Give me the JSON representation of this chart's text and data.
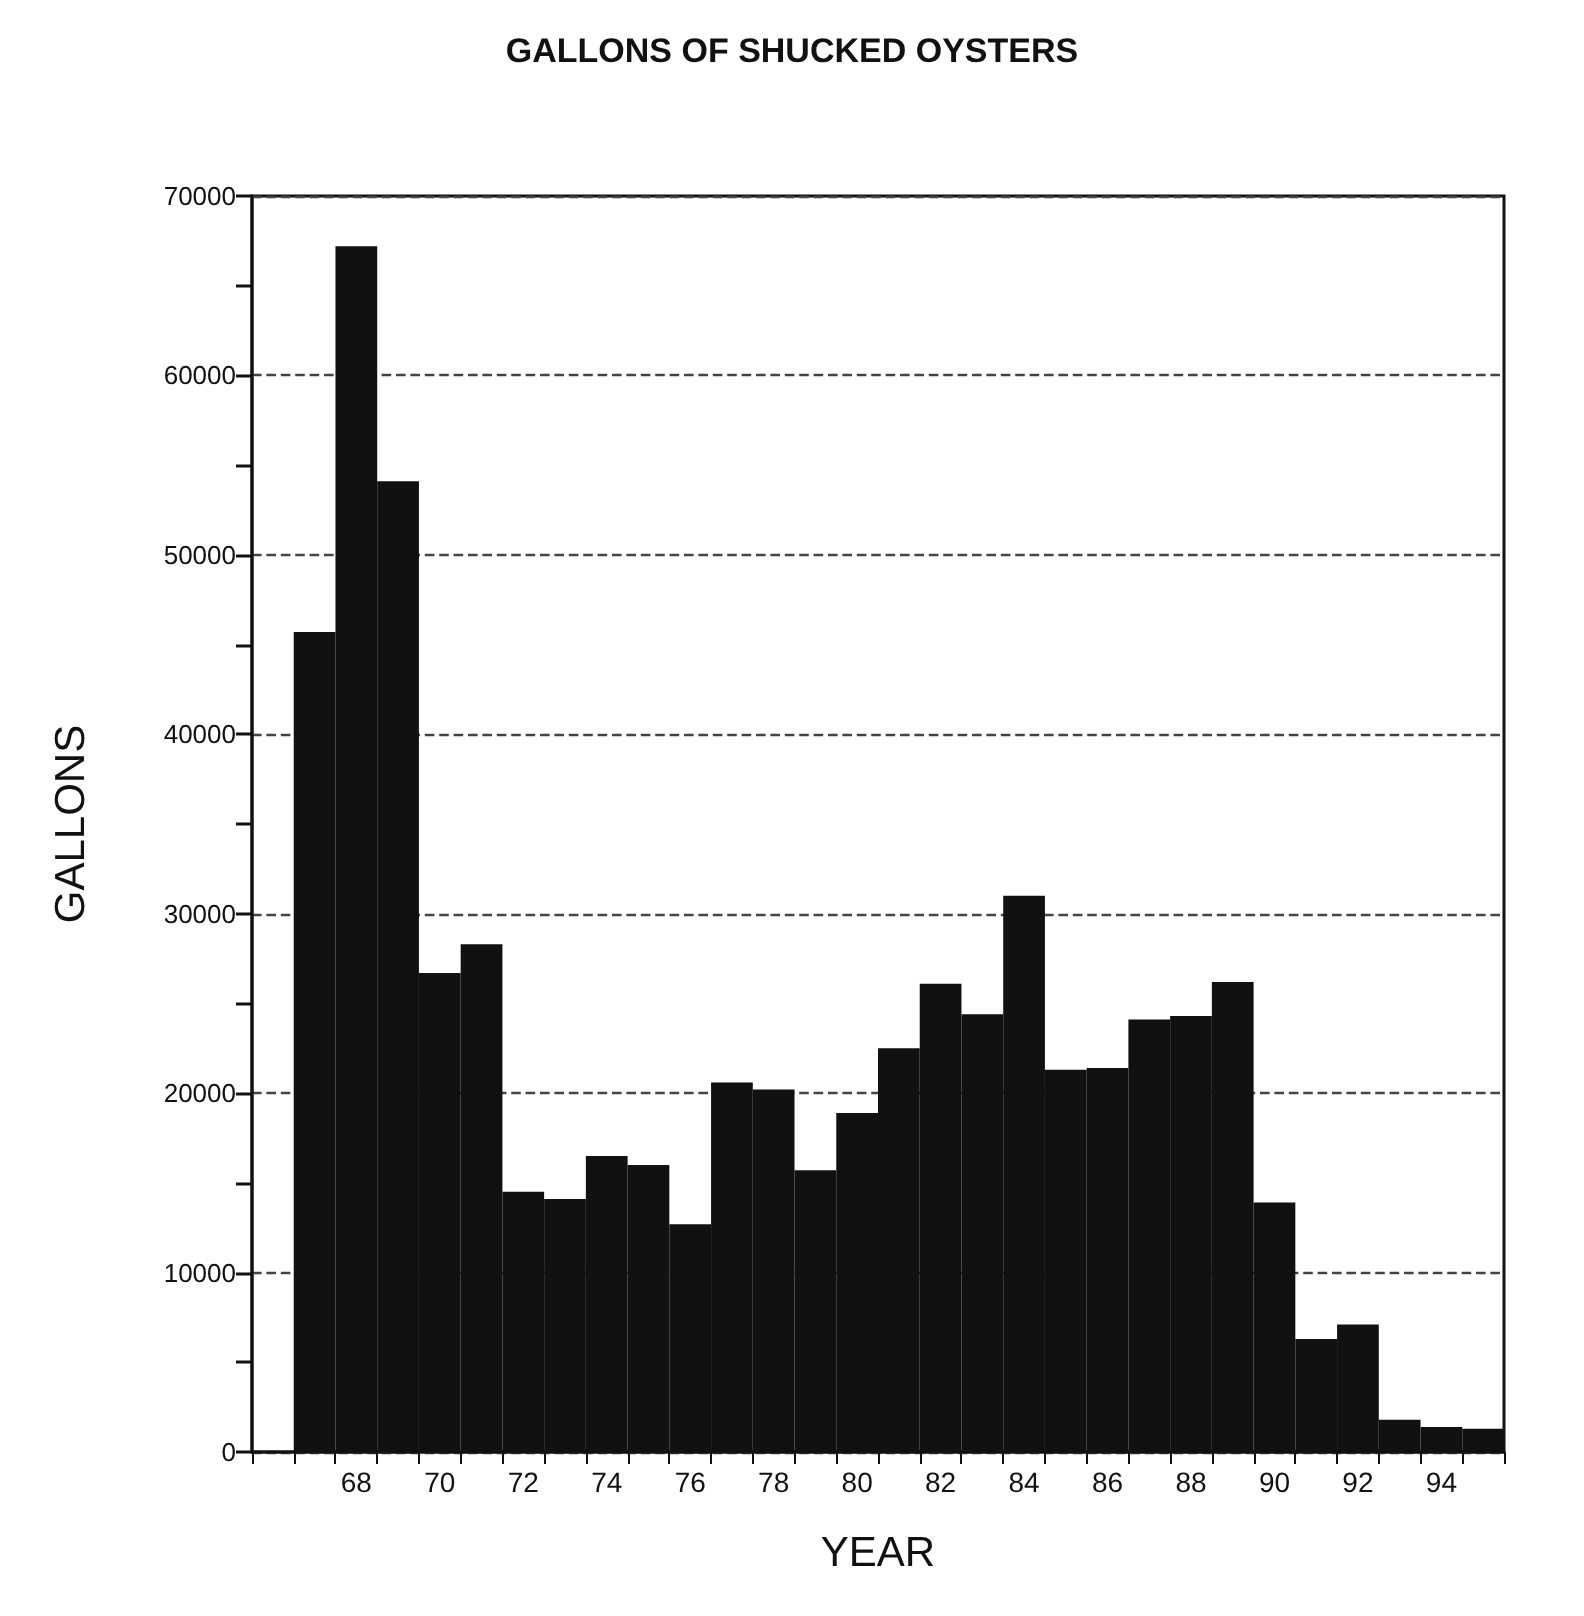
{
  "chart_data": {
    "type": "bar",
    "title": "GALLONS OF SHUCKED OYSTERS",
    "xlabel": "YEAR",
    "ylabel": "GALLONS",
    "categories": [
      null,
      null,
      "68",
      null,
      "70",
      null,
      "72",
      null,
      "74",
      null,
      "76",
      null,
      "78",
      null,
      "80",
      null,
      "82",
      null,
      "84",
      null,
      "86",
      null,
      "88",
      null,
      "90",
      null,
      "92",
      null,
      "94",
      null
    ],
    "values": [
      null,
      45700,
      67200,
      54100,
      26700,
      28300,
      14500,
      14100,
      16500,
      16000,
      12700,
      20600,
      20200,
      15700,
      18900,
      22500,
      26100,
      24400,
      31000,
      21300,
      21400,
      24100,
      24300,
      26200,
      13900,
      6300,
      7100,
      1800,
      1400,
      1300
    ],
    "color": "#111111",
    "ylim": [
      0,
      70000
    ],
    "yticks": [
      0,
      {
        "value": 5000,
        "label": null
      },
      10000,
      {
        "value": 15000,
        "label": null
      },
      20000,
      {
        "value": 25000,
        "label": null
      },
      30000,
      {
        "value": 35000,
        "label": null
      },
      40000,
      {
        "value": 45000,
        "label": null
      },
      50000,
      {
        "value": 55000,
        "label": null
      },
      60000,
      {
        "value": 65000,
        "label": null
      },
      70000
    ],
    "grid": "y",
    "line_style": "dashed"
  }
}
